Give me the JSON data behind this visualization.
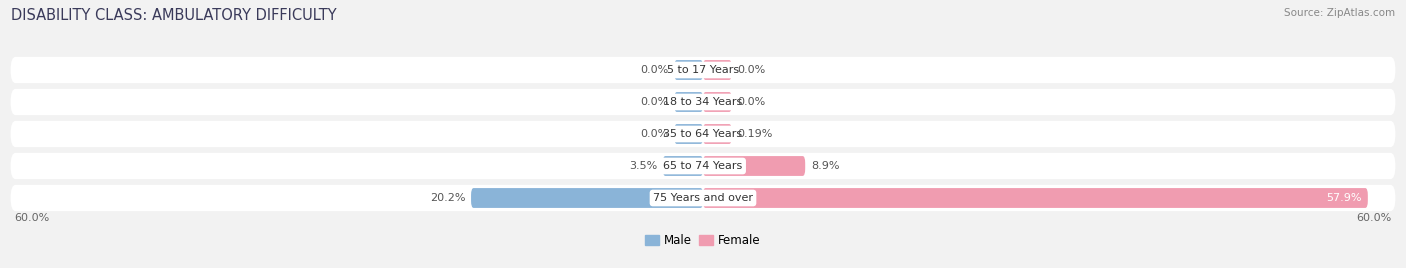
{
  "title": "DISABILITY CLASS: AMBULATORY DIFFICULTY",
  "source": "Source: ZipAtlas.com",
  "categories": [
    "5 to 17 Years",
    "18 to 34 Years",
    "35 to 64 Years",
    "65 to 74 Years",
    "75 Years and over"
  ],
  "male_values": [
    0.0,
    0.0,
    0.0,
    3.5,
    20.2
  ],
  "female_values": [
    0.0,
    0.0,
    0.19,
    8.9,
    57.9
  ],
  "male_labels": [
    "0.0%",
    "0.0%",
    "0.0%",
    "3.5%",
    "20.2%"
  ],
  "female_labels": [
    "0.0%",
    "0.0%",
    "0.19%",
    "8.9%",
    "57.9%"
  ],
  "male_color": "#8ab4d8",
  "female_color": "#f09cb0",
  "label_color_dark": "#555555",
  "label_color_white": "#ffffff",
  "background_color": "#f2f2f2",
  "row_bg_color": "#ffffff",
  "xlim": 60.0,
  "x_axis_label_left": "60.0%",
  "x_axis_label_right": "60.0%",
  "legend_male": "Male",
  "legend_female": "Female",
  "title_fontsize": 10.5,
  "source_fontsize": 7.5,
  "label_fontsize": 8,
  "cat_fontsize": 8,
  "bar_height": 0.62,
  "min_bar_display": 2.5,
  "row_rounding": 0.42,
  "bar_rounding": 0.22
}
